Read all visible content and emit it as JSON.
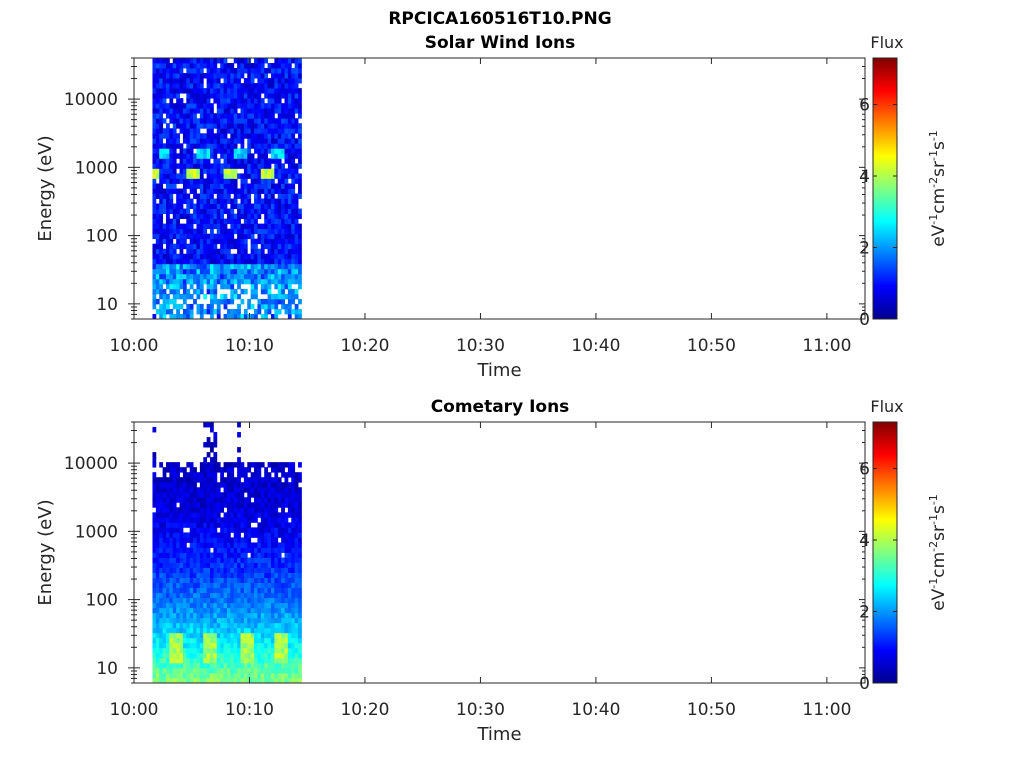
{
  "figure": {
    "title": "RPCICA160516T10.PNG"
  },
  "colormap": [
    "#00008f",
    "#0000ff",
    "#0080ff",
    "#00ffff",
    "#80ff80",
    "#ffff00",
    "#ff8000",
    "#ff0000",
    "#800000"
  ],
  "chart_data": [
    {
      "type": "heatmap",
      "title": "Solar Wind Ions",
      "xlabel": "Time",
      "ylabel": "Energy (eV)",
      "x_tick_labels": [
        "10:00",
        "10:10",
        "10:20",
        "10:30",
        "10:40",
        "10:50",
        "11:00"
      ],
      "x_ticks_minutes": [
        0,
        10,
        20,
        30,
        40,
        50,
        60
      ],
      "xlim_minutes": [
        0,
        63.3
      ],
      "yscale": "log",
      "ylim": [
        6,
        40000
      ],
      "y_tick_labels": [
        "10",
        "100",
        "1000",
        "10000"
      ],
      "y_ticks": [
        10,
        100,
        1000,
        10000
      ],
      "data_time_range_minutes": [
        1.6,
        14.5
      ],
      "colorbar": {
        "title": "Flux",
        "label": "eV-1cm-2sr-1s-1",
        "range": [
          0,
          7.3
        ],
        "tick_labels": [
          "0",
          "2",
          "4",
          "6"
        ],
        "ticks": [
          0,
          2,
          4,
          6
        ]
      },
      "features": [
        {
          "energy_eV": 800,
          "flux": 4.5,
          "times_minutes": [
            1.8,
            5.1,
            8.3,
            11.6
          ]
        },
        {
          "energy_eV": 1500,
          "flux": 2.8,
          "times_minutes": [
            2.7,
            6.0,
            9.2,
            12.5
          ]
        }
      ]
    },
    {
      "type": "heatmap",
      "title": "Cometary Ions",
      "xlabel": "Time",
      "ylabel": "Energy (eV)",
      "x_tick_labels": [
        "10:00",
        "10:10",
        "10:20",
        "10:30",
        "10:40",
        "10:50",
        "11:00"
      ],
      "x_ticks_minutes": [
        0,
        10,
        20,
        30,
        40,
        50,
        60
      ],
      "xlim_minutes": [
        0,
        63.3
      ],
      "yscale": "log",
      "ylim": [
        6,
        40000
      ],
      "y_tick_labels": [
        "10",
        "100",
        "1000",
        "10000"
      ],
      "y_ticks": [
        10,
        100,
        1000,
        10000
      ],
      "data_time_range_minutes": [
        1.6,
        14.5
      ],
      "colorbar": {
        "title": "Flux",
        "label": "eV-1cm-2sr-1s-1",
        "range": [
          0,
          7.3
        ],
        "tick_labels": [
          "0",
          "2",
          "4",
          "6"
        ],
        "ticks": [
          0,
          2,
          4,
          6
        ]
      },
      "features": [
        {
          "energy_eV": 20,
          "flux": 4.3,
          "times_minutes": [
            3.6,
            6.6,
            9.8,
            12.8
          ]
        }
      ]
    }
  ]
}
